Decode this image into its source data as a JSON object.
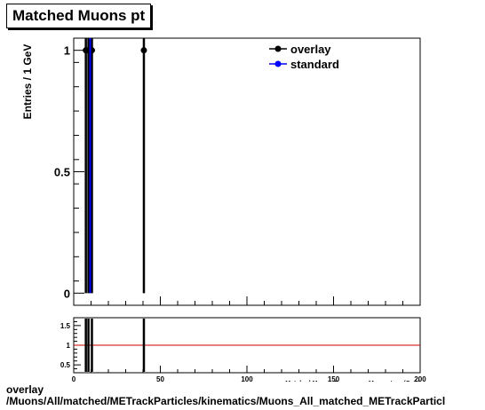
{
  "title": "Matched Muons pt",
  "footer": {
    "line1": "overlay",
    "line2": "/Muons/All/matched/METrackParticles/kinematics/Muons_All_matched_METrackParticl"
  },
  "chart_data": [
    {
      "type": "scatter",
      "panel": "main",
      "title": "Matched Muons pt",
      "xlabel": "Matched Muons Transverse Momentum (GeV)",
      "ylabel": "Entries / 1 GeV",
      "xlim": [
        0,
        200
      ],
      "ylim": [
        -0.05,
        1.05
      ],
      "y_ticks": [
        0,
        0.5,
        1
      ],
      "y_tick_labels": [
        "0",
        "0.5",
        "1"
      ],
      "legend": {
        "position": "top-right",
        "entries": [
          {
            "name": "overlay",
            "color": "#000000"
          },
          {
            "name": "standard",
            "color": "#0000ff"
          }
        ]
      },
      "series": [
        {
          "name": "overlay",
          "color": "#000000",
          "points": [
            {
              "x": 7,
              "y": 1,
              "yerr": 1
            },
            {
              "x": 8.5,
              "y": 1,
              "yerr": 1
            },
            {
              "x": 10.5,
              "y": 1,
              "yerr": 1
            },
            {
              "x": 40.5,
              "y": 1,
              "yerr": 1
            }
          ]
        },
        {
          "name": "standard",
          "color": "#0000ff",
          "points": [
            {
              "x": 9.5,
              "y": 1,
              "yerr": 1
            }
          ]
        }
      ]
    },
    {
      "type": "scatter",
      "panel": "ratio",
      "xlim": [
        0,
        200
      ],
      "ylim": [
        0.3,
        1.7
      ],
      "x_ticks": [
        0,
        50,
        100,
        150,
        200
      ],
      "x_tick_labels": [
        "0",
        "50",
        "100",
        "150",
        "200"
      ],
      "y_ticks": [
        0.5,
        1,
        1.5
      ],
      "y_tick_labels": [
        "0.5",
        "1",
        "1.5"
      ],
      "reference_line": {
        "y": 1,
        "color": "#cc0000"
      },
      "error_lines": [
        7,
        8.5,
        10.5,
        40.5
      ]
    }
  ]
}
